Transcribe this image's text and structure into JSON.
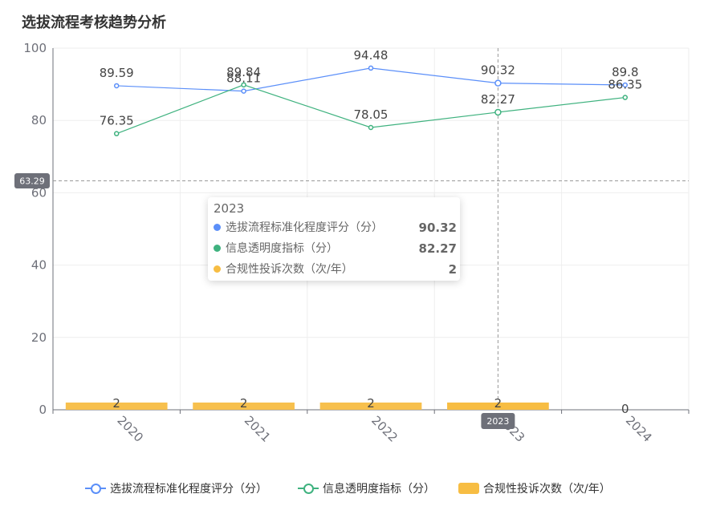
{
  "title": "选拔流程考核趋势分析",
  "chart_data": {
    "type": "bar+line",
    "categories": [
      "2020",
      "2021",
      "2022",
      "2023",
      "2024"
    ],
    "ylim": [
      0,
      100
    ],
    "yticks": [
      0,
      20,
      40,
      60,
      80,
      100
    ],
    "series": [
      {
        "name": "选拔流程标准化程度评分（分）",
        "type": "line",
        "color": "#5b8ff9",
        "values": [
          89.59,
          88.11,
          94.48,
          90.32,
          89.8
        ]
      },
      {
        "name": "信息透明度指标（分）",
        "type": "line",
        "color": "#3fb27f",
        "values": [
          76.35,
          89.84,
          78.05,
          82.27,
          86.35
        ]
      },
      {
        "name": "合规性投诉次数（次/年）",
        "type": "bar",
        "color": "#f7bd43",
        "values": [
          2,
          2,
          2,
          2,
          0
        ]
      }
    ],
    "crosshair": {
      "y_label": "63.29",
      "x_label": "2023"
    }
  },
  "tooltip": {
    "header": "2023",
    "rows": [
      {
        "label": "选拔流程标准化程度评分（分）",
        "value": "90.32",
        "color": "#5b8ff9"
      },
      {
        "label": "信息透明度指标（分）",
        "value": "82.27",
        "color": "#3fb27f"
      },
      {
        "label": "合规性投诉次数（次/年）",
        "value": "2",
        "color": "#f7bd43"
      }
    ]
  },
  "legend": [
    {
      "label": "选拔流程标准化程度评分（分）",
      "color": "#5b8ff9",
      "kind": "line"
    },
    {
      "label": "信息透明度指标（分）",
      "color": "#3fb27f",
      "kind": "line"
    },
    {
      "label": "合规性投诉次数（次/年）",
      "color": "#f7bd43",
      "kind": "bar"
    }
  ]
}
